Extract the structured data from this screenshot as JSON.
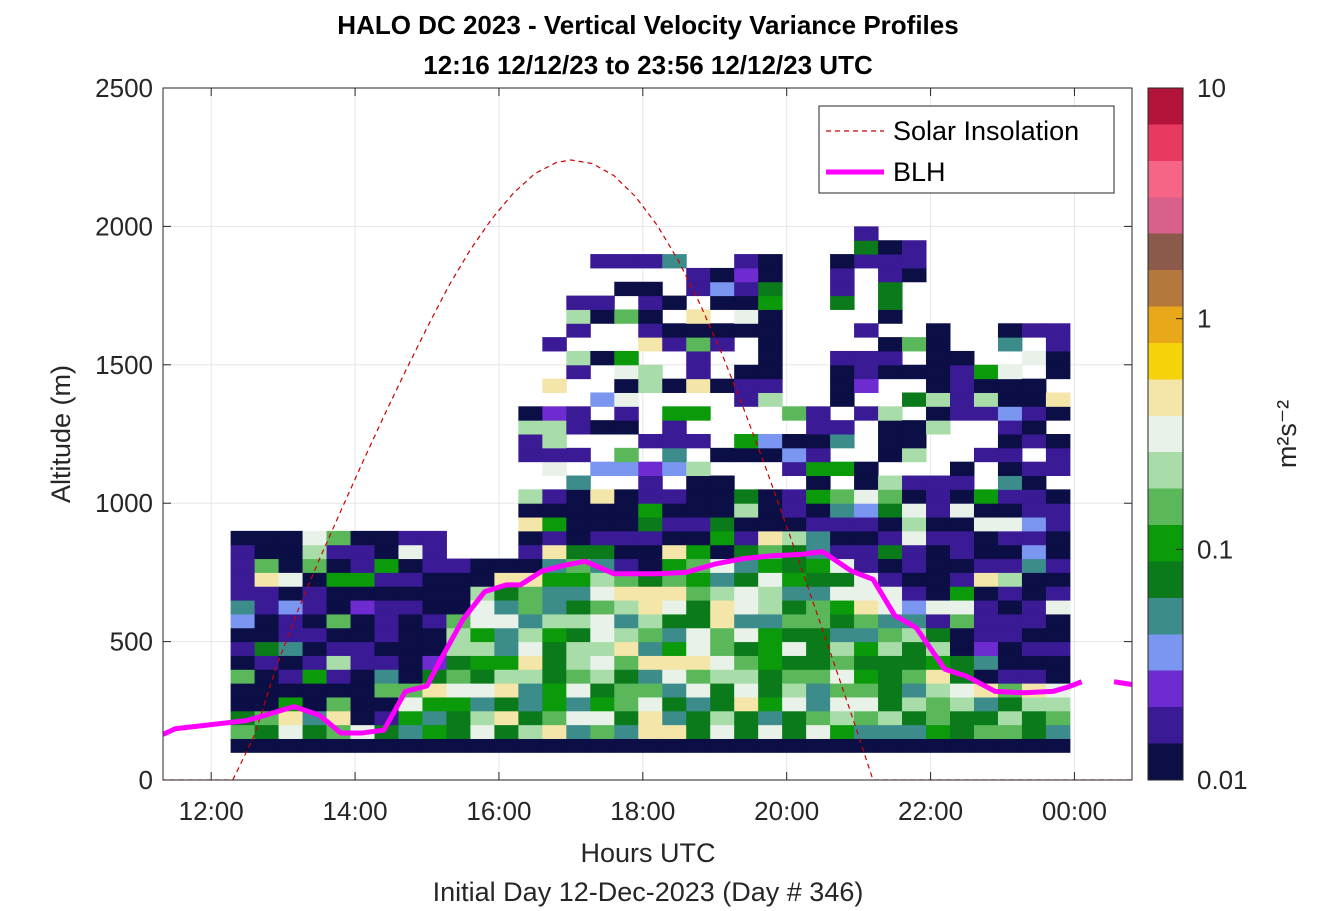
{
  "chart_data": {
    "type": "heatmap",
    "title": "HALO DC 2023 - Vertical Velocity Variance Profiles",
    "subtitle": "12:16 12/12/23 to 23:56 12/12/23  UTC",
    "xlabel": "Hours UTC",
    "xlabel2": "Initial Day 12-Dec-2023 (Day # 346)",
    "ylabel": "Altitude (m)",
    "xlim": [
      11.33,
      24.8
    ],
    "ylim": [
      0,
      2500
    ],
    "x_ticks": [
      12,
      14,
      16,
      18,
      20,
      22,
      24
    ],
    "x_tick_labels": [
      "12:00",
      "14:00",
      "16:00",
      "18:00",
      "20:00",
      "22:00",
      "00:00"
    ],
    "y_ticks": [
      0,
      500,
      1000,
      1500,
      2000,
      2500
    ],
    "y_tick_labels": [
      "0",
      "500",
      "1000",
      "1500",
      "2000",
      "2500"
    ],
    "grid": true,
    "legend_position": "top-right",
    "colorbar": {
      "label": "m²s⁻²",
      "scale": "log",
      "range": [
        0.01,
        10
      ],
      "tick_values": [
        0.01,
        0.1,
        1,
        10
      ],
      "tick_labels": [
        "0.01",
        "0.1",
        "1",
        "10"
      ],
      "colors": [
        "#0b0f45",
        "#3b1a95",
        "#6e2bd0",
        "#7a96f0",
        "#3d8c8c",
        "#0a7a1a",
        "#0a9a0a",
        "#5ab85a",
        "#a8dca8",
        "#e8f2e8",
        "#f4e6a8",
        "#f5d20a",
        "#e8a81a",
        "#b4783c",
        "#8c5a4a",
        "#d8608a",
        "#f66486",
        "#e83a60",
        "#b4143a"
      ]
    },
    "series": [
      {
        "name": "Solar Insolation",
        "style": "dashed",
        "color": "#cc0000",
        "x": [
          11.3,
          12.3,
          12.6,
          12.9,
          13.2,
          13.5,
          13.8,
          14.1,
          14.4,
          14.7,
          15.0,
          15.3,
          15.6,
          15.9,
          16.2,
          16.5,
          16.8,
          17.0,
          17.3,
          17.6,
          17.9,
          18.2,
          18.5,
          18.8,
          19.1,
          19.4,
          19.7,
          20.0,
          20.3,
          20.6,
          20.9,
          21.2,
          21.5,
          21.7,
          24.8
        ],
        "y": [
          0,
          0,
          161,
          405,
          609,
          795,
          971,
          1145,
          1314,
          1477,
          1634,
          1784,
          1915,
          2027,
          2120,
          2191,
          2231,
          2240,
          2227,
          2183,
          2107,
          2004,
          1874,
          1717,
          1539,
          1343,
          1134,
          916,
          693,
          466,
          237,
          0,
          0,
          0,
          0
        ]
      },
      {
        "name": "BLH",
        "style": "solid",
        "color": "#ff00ff",
        "x": [
          11.33,
          11.5,
          12.0,
          12.5,
          13.15,
          13.5,
          13.8,
          14.1,
          14.4,
          14.7,
          15.0,
          15.2,
          15.5,
          15.8,
          16.1,
          16.3,
          16.6,
          16.9,
          17.2,
          17.6,
          17.9,
          18.2,
          18.6,
          19.0,
          19.4,
          19.8,
          20.2,
          20.5,
          20.9,
          21.2,
          21.5,
          21.8,
          22.2,
          22.5,
          22.9,
          23.3,
          23.7,
          23.9,
          24.1
        ],
        "y": [
          165,
          185,
          200,
          215,
          265,
          235,
          170,
          170,
          180,
          320,
          340,
          440,
          580,
          680,
          705,
          705,
          755,
          775,
          790,
          745,
          745,
          745,
          750,
          780,
          800,
          810,
          815,
          825,
          755,
          725,
          595,
          550,
          400,
          375,
          320,
          315,
          320,
          335,
          355
        ]
      }
    ],
    "heatmap_summary": "Gridded cells of vertical velocity variance from about 100 m to 2000 m altitude between 12:16 and 23:56 UTC; cells below the BLH line are mostly green/pale (0.1–0.5), cells above are mostly dark navy (<0.02)."
  }
}
